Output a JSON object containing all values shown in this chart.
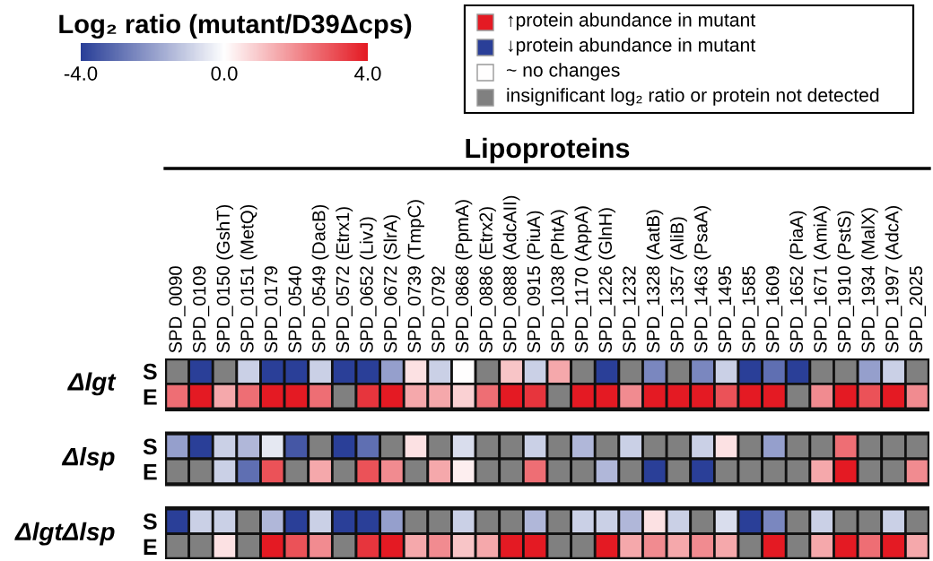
{
  "chart_data": {
    "type": "heatmap",
    "xlabel": "Lipoproteins",
    "clabel": "Log₂ ratio (mutant/D39Δcps)",
    "clim": [
      -4,
      4
    ],
    "cticks": [
      {
        "value": -4,
        "label": "-4.0"
      },
      {
        "value": 0,
        "label": "0.0"
      },
      {
        "value": 4,
        "label": "4.0"
      }
    ],
    "annotations": [
      "↑protein abundance in mutant",
      "↓protein abundance in mutant",
      "~ no changes",
      "insignificant log₂ ratio or protein not detected",
      "Δlgt",
      "Δlsp",
      "ΔlgtΔlsp"
    ],
    "categories": [
      "SPD_0090",
      "SPD_0109",
      "SPD_0150 (GshT)",
      "SPD_0151 (MetQ)",
      "SPD_0179",
      "SPD_0540",
      "SPD_0549 (DacB)",
      "SPD_0572 (Etrx1)",
      "SPD_0652 (LivJ)",
      "SPD_0672 (SlrA)",
      "SPD_0739 (TmpC)",
      "SPD_0792",
      "SPD_0868 (PpmA)",
      "SPD_0886 (Etrx2)",
      "SPD_0888 (AdcAII)",
      "SPD_0915 (PiuA)",
      "SPD_1038 (PhtA)",
      "SPD_1170 (AppA)",
      "SPD_1226 (GlnH)",
      "SPD_1232",
      "SPD_1328 (AatB)",
      "SPD_1357 (AliB)",
      "SPD_1463 (PsaA)",
      "SPD_1495",
      "SPD_1585",
      "SPD_1609",
      "SPD_1652 (PiaA)",
      "SPD_1671 (AmiA)",
      "SPD_1910 (PstS)",
      "SPD_1934 (MalX)",
      "SPD_1997 (AdcA)",
      "SPD_2025"
    ],
    "y_categories": [
      "S",
      "E",
      "S",
      "E",
      "S",
      "E"
    ],
    "cells": [
      [
        null,
        -4,
        null,
        -1,
        -4,
        -4,
        -1,
        -4,
        -4,
        -2,
        0.5,
        -1,
        0,
        null,
        1,
        -1,
        1.5,
        null,
        -4,
        null,
        -2.5,
        null,
        -2.5,
        -1,
        -4,
        -3,
        -4,
        null,
        null,
        -2,
        -1,
        null
      ],
      [
        2.5,
        4,
        1.5,
        2.5,
        4,
        4,
        2.5,
        null,
        3.5,
        4,
        1.5,
        1.5,
        0.8,
        2.5,
        4,
        3.5,
        null,
        4,
        4,
        2,
        4,
        4,
        4,
        3,
        4,
        4,
        null,
        2,
        4,
        3,
        4,
        2
      ],
      [
        -2,
        -4,
        -1,
        -1.5,
        -0.5,
        -3.5,
        null,
        -4,
        -3,
        null,
        0.5,
        null,
        -0.7,
        null,
        null,
        -1,
        null,
        -1.5,
        null,
        -1,
        null,
        null,
        -1,
        0.5,
        null,
        -2,
        null,
        null,
        2.5,
        null,
        null,
        null
      ],
      [
        null,
        null,
        -1,
        -3,
        3,
        null,
        1.5,
        null,
        3,
        2,
        null,
        1.5,
        0.3,
        null,
        null,
        2.5,
        null,
        null,
        -1.5,
        null,
        -4,
        null,
        -4,
        null,
        null,
        null,
        null,
        1.5,
        4,
        null,
        null,
        2
      ],
      [
        -4,
        -1,
        -1,
        null,
        -1.5,
        -4,
        -1,
        -4,
        -4,
        -2,
        null,
        null,
        -1,
        null,
        null,
        -1.5,
        null,
        -1,
        -1,
        -1.5,
        0.5,
        -1,
        null,
        -0.7,
        -4,
        -2.5,
        null,
        -1,
        null,
        null,
        -1,
        null
      ],
      [
        null,
        null,
        0.5,
        null,
        4,
        3,
        2,
        null,
        3.5,
        4,
        1.5,
        2,
        1,
        1.5,
        4,
        4,
        null,
        null,
        4,
        1.5,
        2,
        1.5,
        2,
        1.5,
        null,
        4,
        null,
        1.5,
        4,
        2.5,
        4,
        1.5
      ]
    ]
  }
}
